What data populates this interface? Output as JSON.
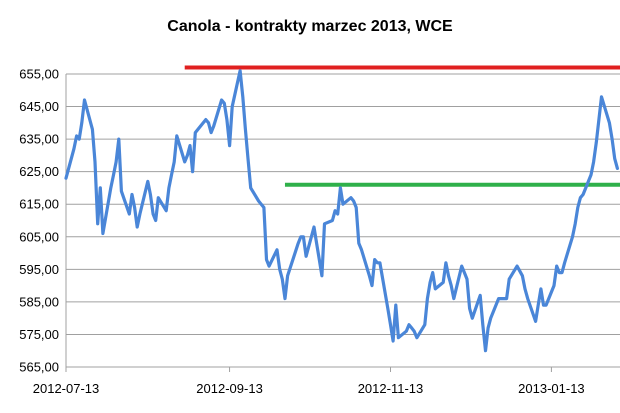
{
  "chart_data": {
    "type": "line",
    "title": "Canola - kontrakty marzec 2013, WCE",
    "ylim": [
      565,
      655
    ],
    "y_ticks": [
      565,
      575,
      585,
      595,
      605,
      615,
      625,
      635,
      645,
      655
    ],
    "y_tick_labels": [
      "565,00",
      "575,00",
      "585,00",
      "595,00",
      "605,00",
      "615,00",
      "625,00",
      "635,00",
      "645,00",
      "655,00"
    ],
    "x_tick_labels": [
      "2012-07-13",
      "2012-09-13",
      "2012-11-13",
      "2013-01-13"
    ],
    "x_tick_dates": [
      "2012-07-13",
      "2012-09-13",
      "2012-11-13",
      "2013-01-13"
    ],
    "xlim": [
      "2012-07-13",
      "2013-02-08"
    ],
    "grid": "horizontal",
    "series": [
      {
        "color": "#4a86d8",
        "points": [
          [
            "2012-07-13",
            623
          ],
          [
            "2012-07-16",
            632
          ],
          [
            "2012-07-17",
            636
          ],
          [
            "2012-07-18",
            635
          ],
          [
            "2012-07-19",
            640
          ],
          [
            "2012-07-20",
            647
          ],
          [
            "2012-07-23",
            638
          ],
          [
            "2012-07-24",
            628
          ],
          [
            "2012-07-25",
            609
          ],
          [
            "2012-07-26",
            620
          ],
          [
            "2012-07-27",
            606
          ],
          [
            "2012-07-30",
            620
          ],
          [
            "2012-07-31",
            624
          ],
          [
            "2012-08-01",
            628
          ],
          [
            "2012-08-02",
            635
          ],
          [
            "2012-08-03",
            619
          ],
          [
            "2012-08-06",
            612
          ],
          [
            "2012-08-07",
            618
          ],
          [
            "2012-08-08",
            614
          ],
          [
            "2012-08-09",
            608
          ],
          [
            "2012-08-10",
            612
          ],
          [
            "2012-08-13",
            622
          ],
          [
            "2012-08-14",
            618
          ],
          [
            "2012-08-15",
            612
          ],
          [
            "2012-08-16",
            610
          ],
          [
            "2012-08-17",
            617
          ],
          [
            "2012-08-20",
            613
          ],
          [
            "2012-08-21",
            620
          ],
          [
            "2012-08-22",
            624
          ],
          [
            "2012-08-23",
            628
          ],
          [
            "2012-08-24",
            636
          ],
          [
            "2012-08-27",
            628
          ],
          [
            "2012-08-28",
            630
          ],
          [
            "2012-08-29",
            633
          ],
          [
            "2012-08-30",
            625
          ],
          [
            "2012-08-31",
            637
          ],
          [
            "2012-09-04",
            641
          ],
          [
            "2012-09-05",
            640
          ],
          [
            "2012-09-06",
            637
          ],
          [
            "2012-09-07",
            639
          ],
          [
            "2012-09-10",
            647
          ],
          [
            "2012-09-11",
            646
          ],
          [
            "2012-09-12",
            641
          ],
          [
            "2012-09-13",
            633
          ],
          [
            "2012-09-14",
            645
          ],
          [
            "2012-09-17",
            656
          ],
          [
            "2012-09-18",
            648
          ],
          [
            "2012-09-19",
            638
          ],
          [
            "2012-09-20",
            629
          ],
          [
            "2012-09-21",
            620
          ],
          [
            "2012-09-24",
            616
          ],
          [
            "2012-09-25",
            615
          ],
          [
            "2012-09-26",
            614
          ],
          [
            "2012-09-27",
            598
          ],
          [
            "2012-09-28",
            596
          ],
          [
            "2012-10-01",
            601
          ],
          [
            "2012-10-02",
            595
          ],
          [
            "2012-10-03",
            592
          ],
          [
            "2012-10-04",
            586
          ],
          [
            "2012-10-05",
            593
          ],
          [
            "2012-10-09",
            603
          ],
          [
            "2012-10-10",
            605
          ],
          [
            "2012-10-11",
            605
          ],
          [
            "2012-10-12",
            599
          ],
          [
            "2012-10-15",
            608
          ],
          [
            "2012-10-16",
            603
          ],
          [
            "2012-10-17",
            598
          ],
          [
            "2012-10-18",
            593
          ],
          [
            "2012-10-19",
            609
          ],
          [
            "2012-10-22",
            610
          ],
          [
            "2012-10-23",
            613
          ],
          [
            "2012-10-24",
            612
          ],
          [
            "2012-10-25",
            620
          ],
          [
            "2012-10-26",
            615
          ],
          [
            "2012-10-29",
            617
          ],
          [
            "2012-10-30",
            616
          ],
          [
            "2012-10-31",
            614
          ],
          [
            "2012-11-01",
            603
          ],
          [
            "2012-11-02",
            601
          ],
          [
            "2012-11-05",
            593
          ],
          [
            "2012-11-06",
            590
          ],
          [
            "2012-11-07",
            598
          ],
          [
            "2012-11-08",
            597
          ],
          [
            "2012-11-09",
            597
          ],
          [
            "2012-11-12",
            583
          ],
          [
            "2012-11-13",
            578
          ],
          [
            "2012-11-14",
            573
          ],
          [
            "2012-11-15",
            584
          ],
          [
            "2012-11-16",
            574
          ],
          [
            "2012-11-19",
            576
          ],
          [
            "2012-11-20",
            578
          ],
          [
            "2012-11-21",
            577
          ],
          [
            "2012-11-22",
            576
          ],
          [
            "2012-11-23",
            574
          ],
          [
            "2012-11-26",
            578
          ],
          [
            "2012-11-27",
            586
          ],
          [
            "2012-11-28",
            591
          ],
          [
            "2012-11-29",
            594
          ],
          [
            "2012-11-30",
            589
          ],
          [
            "2012-12-03",
            591
          ],
          [
            "2012-12-04",
            597
          ],
          [
            "2012-12-05",
            593
          ],
          [
            "2012-12-06",
            590
          ],
          [
            "2012-12-07",
            586
          ],
          [
            "2012-12-10",
            596
          ],
          [
            "2012-12-11",
            594
          ],
          [
            "2012-12-12",
            592
          ],
          [
            "2012-12-13",
            583
          ],
          [
            "2012-12-14",
            580
          ],
          [
            "2012-12-17",
            587
          ],
          [
            "2012-12-18",
            578
          ],
          [
            "2012-12-19",
            570
          ],
          [
            "2012-12-20",
            577
          ],
          [
            "2012-12-21",
            580
          ],
          [
            "2012-12-24",
            586
          ],
          [
            "2012-12-27",
            586
          ],
          [
            "2012-12-28",
            592
          ],
          [
            "2012-12-31",
            596
          ],
          [
            "2013-01-02",
            593
          ],
          [
            "2013-01-03",
            589
          ],
          [
            "2013-01-04",
            586
          ],
          [
            "2013-01-07",
            579
          ],
          [
            "2013-01-08",
            584
          ],
          [
            "2013-01-09",
            589
          ],
          [
            "2013-01-10",
            584
          ],
          [
            "2013-01-11",
            584
          ],
          [
            "2013-01-14",
            590
          ],
          [
            "2013-01-15",
            596
          ],
          [
            "2013-01-16",
            594
          ],
          [
            "2013-01-17",
            594
          ],
          [
            "2013-01-18",
            597
          ],
          [
            "2013-01-21",
            605
          ],
          [
            "2013-01-22",
            609
          ],
          [
            "2013-01-23",
            614
          ],
          [
            "2013-01-24",
            617
          ],
          [
            "2013-01-25",
            618
          ],
          [
            "2013-01-28",
            624
          ],
          [
            "2013-01-29",
            628
          ],
          [
            "2013-01-30",
            634
          ],
          [
            "2013-01-31",
            641
          ],
          [
            "2013-02-01",
            648
          ],
          [
            "2013-02-04",
            640
          ],
          [
            "2013-02-05",
            635
          ],
          [
            "2013-02-06",
            629
          ],
          [
            "2013-02-07",
            626
          ]
        ]
      }
    ],
    "reference_lines": [
      {
        "color": "#e02020",
        "y": 657,
        "x_start": "2012-08-27",
        "x_end": "2013-02-08"
      },
      {
        "color": "#2fb04a",
        "y": 621,
        "x_start": "2012-10-04",
        "x_end": "2013-02-08"
      }
    ],
    "axis_color": "#a0a0a0",
    "grid_color": "#a0a0a0"
  }
}
